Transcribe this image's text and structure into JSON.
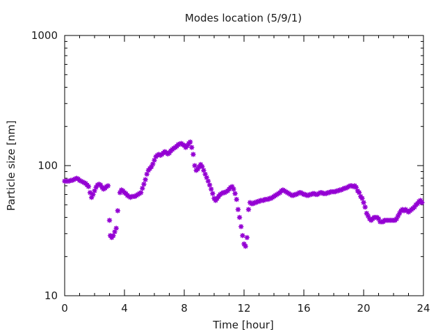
{
  "chart_data": {
    "type": "scatter",
    "title": "Modes location (5/9/1)",
    "xlabel": "Time [hour]",
    "ylabel": "Particle size [nm]",
    "xlim": [
      0,
      24
    ],
    "ylim": [
      10,
      1000
    ],
    "yscale": "log",
    "grid": false,
    "legend": "none",
    "marker_color": "#9400d3",
    "xticks": [
      0,
      4,
      8,
      12,
      16,
      20,
      24
    ],
    "xtick_labels": [
      "0",
      "4",
      "8",
      "12",
      "16",
      "20",
      "24"
    ],
    "yticks": [
      10,
      100,
      1000
    ],
    "ytick_labels": [
      "10",
      "100",
      "1000"
    ],
    "series": [
      {
        "points": [
          [
            0.0,
            76
          ],
          [
            0.1,
            76
          ],
          [
            0.2,
            76
          ],
          [
            0.3,
            76
          ],
          [
            0.4,
            77
          ],
          [
            0.5,
            77
          ],
          [
            0.6,
            78
          ],
          [
            0.7,
            79
          ],
          [
            0.8,
            80
          ],
          [
            0.9,
            79
          ],
          [
            1.0,
            77
          ],
          [
            1.1,
            76
          ],
          [
            1.2,
            75
          ],
          [
            1.3,
            74
          ],
          [
            1.4,
            73
          ],
          [
            1.5,
            71
          ],
          [
            1.6,
            69
          ],
          [
            1.7,
            62
          ],
          [
            1.8,
            57
          ],
          [
            1.9,
            60
          ],
          [
            2.0,
            64
          ],
          [
            2.1,
            68
          ],
          [
            2.2,
            71
          ],
          [
            2.3,
            72
          ],
          [
            2.4,
            71
          ],
          [
            2.5,
            68
          ],
          [
            2.6,
            66
          ],
          [
            2.7,
            67
          ],
          [
            2.8,
            69
          ],
          [
            2.9,
            70
          ],
          [
            3.0,
            38
          ],
          [
            3.05,
            29
          ],
          [
            3.15,
            28
          ],
          [
            3.25,
            29
          ],
          [
            3.35,
            31
          ],
          [
            3.45,
            33
          ],
          [
            3.55,
            45
          ],
          [
            3.7,
            62
          ],
          [
            3.8,
            65
          ],
          [
            3.9,
            64
          ],
          [
            4.0,
            62
          ],
          [
            4.1,
            61
          ],
          [
            4.2,
            59
          ],
          [
            4.3,
            58
          ],
          [
            4.4,
            57
          ],
          [
            4.5,
            58
          ],
          [
            4.6,
            58
          ],
          [
            4.7,
            58
          ],
          [
            4.8,
            59
          ],
          [
            4.9,
            60
          ],
          [
            5.0,
            61
          ],
          [
            5.1,
            62
          ],
          [
            5.2,
            67
          ],
          [
            5.3,
            72
          ],
          [
            5.4,
            78
          ],
          [
            5.5,
            86
          ],
          [
            5.6,
            92
          ],
          [
            5.7,
            95
          ],
          [
            5.8,
            98
          ],
          [
            5.9,
            103
          ],
          [
            6.0,
            110
          ],
          [
            6.1,
            117
          ],
          [
            6.2,
            120
          ],
          [
            6.3,
            122
          ],
          [
            6.4,
            120
          ],
          [
            6.5,
            122
          ],
          [
            6.6,
            125
          ],
          [
            6.7,
            128
          ],
          [
            6.8,
            126
          ],
          [
            6.9,
            123
          ],
          [
            7.0,
            125
          ],
          [
            7.1,
            130
          ],
          [
            7.2,
            133
          ],
          [
            7.3,
            136
          ],
          [
            7.4,
            138
          ],
          [
            7.5,
            141
          ],
          [
            7.6,
            145
          ],
          [
            7.7,
            147
          ],
          [
            7.8,
            148
          ],
          [
            7.9,
            145
          ],
          [
            8.0,
            143
          ],
          [
            8.1,
            138
          ],
          [
            8.2,
            142
          ],
          [
            8.3,
            148
          ],
          [
            8.4,
            152
          ],
          [
            8.5,
            138
          ],
          [
            8.6,
            122
          ],
          [
            8.7,
            100
          ],
          [
            8.8,
            92
          ],
          [
            8.9,
            94
          ],
          [
            9.0,
            98
          ],
          [
            9.1,
            102
          ],
          [
            9.2,
            98
          ],
          [
            9.3,
            92
          ],
          [
            9.4,
            86
          ],
          [
            9.5,
            81
          ],
          [
            9.6,
            76
          ],
          [
            9.7,
            71
          ],
          [
            9.8,
            66
          ],
          [
            9.9,
            61
          ],
          [
            10.0,
            56
          ],
          [
            10.1,
            54
          ],
          [
            10.2,
            56
          ],
          [
            10.3,
            58
          ],
          [
            10.4,
            60
          ],
          [
            10.5,
            61
          ],
          [
            10.6,
            62
          ],
          [
            10.7,
            62
          ],
          [
            10.8,
            63
          ],
          [
            10.9,
            64
          ],
          [
            11.0,
            66
          ],
          [
            11.1,
            68
          ],
          [
            11.2,
            69
          ],
          [
            11.3,
            66
          ],
          [
            11.4,
            61
          ],
          [
            11.5,
            55
          ],
          [
            11.6,
            46
          ],
          [
            11.7,
            40
          ],
          [
            11.8,
            34
          ],
          [
            11.9,
            29
          ],
          [
            12.0,
            25
          ],
          [
            12.1,
            24
          ],
          [
            12.2,
            28
          ],
          [
            12.3,
            46
          ],
          [
            12.4,
            52
          ],
          [
            12.5,
            51
          ],
          [
            12.6,
            51
          ],
          [
            12.7,
            52
          ],
          [
            12.8,
            52
          ],
          [
            12.9,
            53
          ],
          [
            13.0,
            53
          ],
          [
            13.1,
            54
          ],
          [
            13.2,
            54
          ],
          [
            13.3,
            54
          ],
          [
            13.4,
            55
          ],
          [
            13.5,
            55
          ],
          [
            13.6,
            55
          ],
          [
            13.7,
            56
          ],
          [
            13.8,
            56
          ],
          [
            13.9,
            57
          ],
          [
            14.0,
            58
          ],
          [
            14.1,
            59
          ],
          [
            14.2,
            60
          ],
          [
            14.3,
            61
          ],
          [
            14.4,
            62
          ],
          [
            14.5,
            64
          ],
          [
            14.6,
            65
          ],
          [
            14.7,
            64
          ],
          [
            14.8,
            63
          ],
          [
            14.9,
            62
          ],
          [
            15.0,
            61
          ],
          [
            15.1,
            60
          ],
          [
            15.2,
            59
          ],
          [
            15.3,
            59
          ],
          [
            15.4,
            60
          ],
          [
            15.5,
            60
          ],
          [
            15.6,
            61
          ],
          [
            15.7,
            62
          ],
          [
            15.8,
            62
          ],
          [
            15.9,
            61
          ],
          [
            16.0,
            60
          ],
          [
            16.1,
            60
          ],
          [
            16.2,
            59
          ],
          [
            16.3,
            59
          ],
          [
            16.4,
            60
          ],
          [
            16.5,
            60
          ],
          [
            16.6,
            61
          ],
          [
            16.7,
            61
          ],
          [
            16.8,
            60
          ],
          [
            16.9,
            60
          ],
          [
            17.0,
            61
          ],
          [
            17.1,
            62
          ],
          [
            17.2,
            62
          ],
          [
            17.3,
            61
          ],
          [
            17.4,
            61
          ],
          [
            17.5,
            61
          ],
          [
            17.6,
            62
          ],
          [
            17.7,
            62
          ],
          [
            17.8,
            63
          ],
          [
            17.9,
            63
          ],
          [
            18.0,
            63
          ],
          [
            18.1,
            63
          ],
          [
            18.2,
            64
          ],
          [
            18.3,
            64
          ],
          [
            18.4,
            65
          ],
          [
            18.5,
            65
          ],
          [
            18.6,
            66
          ],
          [
            18.7,
            67
          ],
          [
            18.8,
            67
          ],
          [
            18.9,
            68
          ],
          [
            19.0,
            69
          ],
          [
            19.1,
            70
          ],
          [
            19.2,
            70
          ],
          [
            19.3,
            69
          ],
          [
            19.4,
            70
          ],
          [
            19.5,
            68
          ],
          [
            19.6,
            64
          ],
          [
            19.7,
            62
          ],
          [
            19.8,
            58
          ],
          [
            19.9,
            56
          ],
          [
            20.0,
            52
          ],
          [
            20.1,
            48
          ],
          [
            20.2,
            43
          ],
          [
            20.3,
            41
          ],
          [
            20.4,
            39
          ],
          [
            20.5,
            38
          ],
          [
            20.6,
            39
          ],
          [
            20.7,
            40
          ],
          [
            20.8,
            40
          ],
          [
            20.9,
            40
          ],
          [
            21.0,
            39
          ],
          [
            21.1,
            37
          ],
          [
            21.2,
            37
          ],
          [
            21.3,
            37
          ],
          [
            21.4,
            38
          ],
          [
            21.5,
            38
          ],
          [
            21.6,
            38
          ],
          [
            21.7,
            38
          ],
          [
            21.8,
            38
          ],
          [
            21.9,
            38
          ],
          [
            22.0,
            38
          ],
          [
            22.1,
            38
          ],
          [
            22.2,
            39
          ],
          [
            22.3,
            41
          ],
          [
            22.4,
            43
          ],
          [
            22.5,
            45
          ],
          [
            22.6,
            46
          ],
          [
            22.7,
            45
          ],
          [
            22.8,
            46
          ],
          [
            22.9,
            45
          ],
          [
            23.0,
            44
          ],
          [
            23.1,
            45
          ],
          [
            23.2,
            46
          ],
          [
            23.3,
            47
          ],
          [
            23.4,
            48
          ],
          [
            23.5,
            50
          ],
          [
            23.6,
            51
          ],
          [
            23.7,
            53
          ],
          [
            23.8,
            54
          ],
          [
            23.9,
            52
          ]
        ]
      }
    ]
  }
}
